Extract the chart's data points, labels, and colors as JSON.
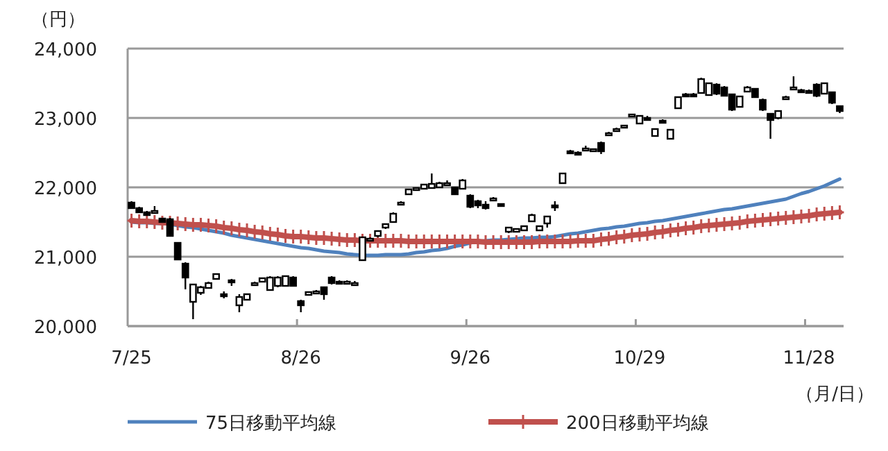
{
  "chart_data": {
    "type": "candlestick",
    "ylabel": "（円）",
    "xlabel": "（月/日）",
    "categories": [
      "7/25",
      null,
      null,
      null,
      null,
      null,
      null,
      null,
      null,
      null,
      null,
      null,
      null,
      null,
      null,
      null,
      null,
      null,
      null,
      null,
      null,
      null,
      "8/26",
      null,
      null,
      null,
      null,
      null,
      null,
      null,
      null,
      null,
      null,
      null,
      null,
      null,
      null,
      null,
      null,
      null,
      null,
      null,
      null,
      null,
      "9/26",
      null,
      null,
      null,
      null,
      null,
      null,
      null,
      null,
      null,
      null,
      null,
      null,
      null,
      null,
      null,
      null,
      null,
      null,
      null,
      null,
      null,
      "10/29",
      null,
      null,
      null,
      null,
      null,
      null,
      null,
      null,
      null,
      null,
      null,
      null,
      null,
      null,
      null,
      null,
      null,
      null,
      null,
      null,
      null,
      "11/28",
      null,
      null,
      null,
      null
    ],
    "ohlc": [
      [
        21780,
        21800,
        21700,
        21700
      ],
      [
        21700,
        21720,
        21640,
        21640
      ],
      [
        21640,
        21660,
        21600,
        21600
      ],
      [
        21650,
        21730,
        21650,
        21660
      ],
      [
        21550,
        21560,
        21500,
        21500
      ],
      [
        21540,
        21560,
        21300,
        21300
      ],
      [
        21200,
        21210,
        20960,
        20960
      ],
      [
        20900,
        20920,
        20530,
        20700
      ],
      [
        20350,
        20600,
        20100,
        20600
      ],
      [
        20480,
        20580,
        20450,
        20560
      ],
      [
        20550,
        20640,
        20540,
        20620
      ],
      [
        20680,
        20760,
        20680,
        20750
      ],
      [
        20460,
        20500,
        20400,
        20460
      ],
      [
        20660,
        20680,
        20580,
        20660
      ],
      [
        20300,
        20460,
        20200,
        20420
      ],
      [
        20380,
        20460,
        20380,
        20460
      ],
      [
        20600,
        20640,
        20580,
        20620
      ],
      [
        20640,
        20700,
        20640,
        20690
      ],
      [
        20520,
        20720,
        20520,
        20700
      ],
      [
        20580,
        20720,
        20560,
        20700
      ],
      [
        20580,
        20720,
        20580,
        20720
      ],
      [
        20700,
        20720,
        20580,
        20580
      ],
      [
        20360,
        20380,
        20200,
        20300
      ],
      [
        20450,
        20500,
        20450,
        20490
      ],
      [
        20480,
        20520,
        20480,
        20500
      ],
      [
        20560,
        20560,
        20380,
        20460
      ],
      [
        20700,
        20720,
        20600,
        20620
      ],
      [
        20640,
        20660,
        20600,
        20620
      ],
      [
        20620,
        20660,
        20600,
        20640
      ],
      [
        20600,
        20650,
        20580,
        20620
      ],
      [
        20950,
        21280,
        20950,
        21280
      ],
      [
        21250,
        21280,
        21230,
        21260
      ],
      [
        21300,
        21380,
        21280,
        21370
      ],
      [
        21420,
        21480,
        21400,
        21470
      ],
      [
        21500,
        21640,
        21500,
        21620
      ],
      [
        21770,
        21800,
        21760,
        21780
      ],
      [
        21900,
        21980,
        21890,
        21970
      ],
      [
        21960,
        22000,
        21950,
        21990
      ],
      [
        21980,
        22050,
        21970,
        22040
      ],
      [
        21990,
        22200,
        21980,
        22050
      ],
      [
        22000,
        22080,
        21990,
        22060
      ],
      [
        22040,
        22100,
        22030,
        22060
      ],
      [
        22000,
        22010,
        21900,
        21900
      ],
      [
        21980,
        22120,
        21980,
        22100
      ],
      [
        21880,
        21900,
        21700,
        21720
      ],
      [
        21800,
        21820,
        21700,
        21740
      ],
      [
        21750,
        21800,
        21680,
        21700
      ],
      [
        21820,
        21860,
        21800,
        21840
      ],
      [
        21760,
        21770,
        21740,
        21750
      ],
      [
        21360,
        21420,
        21340,
        21420
      ],
      [
        21360,
        21410,
        21350,
        21400
      ],
      [
        21380,
        21450,
        21380,
        21440
      ],
      [
        21510,
        21620,
        21500,
        21600
      ],
      [
        21380,
        21450,
        21370,
        21440
      ],
      [
        21480,
        21590,
        21420,
        21580
      ],
      [
        21740,
        21800,
        21660,
        21720
      ],
      [
        22060,
        22200,
        22060,
        22200
      ],
      [
        22520,
        22540,
        22480,
        22500
      ],
      [
        22500,
        22520,
        22460,
        22480
      ],
      [
        22540,
        22600,
        22520,
        22560
      ],
      [
        22540,
        22560,
        22520,
        22550
      ],
      [
        22640,
        22660,
        22480,
        22520
      ],
      [
        22760,
        22800,
        22740,
        22780
      ],
      [
        22820,
        22860,
        22800,
        22840
      ],
      [
        22880,
        22900,
        22860,
        22890
      ],
      [
        23040,
        23060,
        23020,
        23050
      ],
      [
        22920,
        23040,
        22920,
        23030
      ],
      [
        23000,
        23030,
        22980,
        22990
      ],
      [
        22740,
        22840,
        22740,
        22840
      ],
      [
        22960,
        22980,
        22920,
        22950
      ],
      [
        22700,
        22830,
        22700,
        22830
      ],
      [
        23140,
        23300,
        23140,
        23300
      ],
      [
        23340,
        23360,
        23320,
        23330
      ],
      [
        23340,
        23360,
        23320,
        23330
      ],
      [
        23360,
        23580,
        23360,
        23560
      ],
      [
        23330,
        23500,
        23330,
        23500
      ],
      [
        23480,
        23500,
        23330,
        23350
      ],
      [
        23440,
        23460,
        23320,
        23320
      ],
      [
        23340,
        23350,
        23100,
        23120
      ],
      [
        23160,
        23310,
        23160,
        23310
      ],
      [
        23380,
        23460,
        23380,
        23440
      ],
      [
        23420,
        23430,
        23290,
        23300
      ],
      [
        23260,
        23280,
        23100,
        23120
      ],
      [
        23060,
        23070,
        22700,
        22970
      ],
      [
        23000,
        23100,
        22980,
        23100
      ],
      [
        23280,
        23320,
        23280,
        23300
      ],
      [
        23430,
        23600,
        23420,
        23440
      ],
      [
        23400,
        23420,
        23390,
        23400
      ],
      [
        23390,
        23410,
        23370,
        23380
      ],
      [
        23480,
        23500,
        23300,
        23320
      ],
      [
        23350,
        23500,
        23350,
        23500
      ],
      [
        23370,
        23380,
        23200,
        23220
      ],
      [
        23170,
        23180,
        23070,
        23100
      ]
    ],
    "series": [
      {
        "name": "75日移動平均線",
        "type": "line",
        "color": "#4f81bd",
        "marker": "none",
        "values": [
          21500,
          21490,
          21490,
          21480,
          21480,
          21470,
          21450,
          21430,
          21420,
          21400,
          21380,
          21360,
          21340,
          21310,
          21290,
          21270,
          21250,
          21230,
          21210,
          21190,
          21170,
          21150,
          21130,
          21120,
          21100,
          21080,
          21070,
          21060,
          21040,
          21030,
          21020,
          21020,
          21020,
          21030,
          21030,
          21030,
          21040,
          21060,
          21070,
          21090,
          21100,
          21120,
          21150,
          21170,
          21200,
          21220,
          21230,
          21240,
          21240,
          21250,
          21260,
          21270,
          21270,
          21280,
          21280,
          21290,
          21310,
          21330,
          21340,
          21360,
          21380,
          21400,
          21410,
          21430,
          21440,
          21460,
          21480,
          21490,
          21510,
          21520,
          21540,
          21560,
          21580,
          21600,
          21620,
          21640,
          21660,
          21680,
          21690,
          21710,
          21730,
          21750,
          21770,
          21790,
          21810,
          21830,
          21870,
          21910,
          21940,
          21980,
          22020,
          22070,
          22120
        ]
      },
      {
        "name": "200日移動平均線",
        "type": "line",
        "color": "#c0504d",
        "marker": "cross",
        "values": [
          21520,
          21510,
          21510,
          21500,
          21490,
          21490,
          21480,
          21470,
          21460,
          21460,
          21450,
          21440,
          21420,
          21410,
          21390,
          21380,
          21360,
          21350,
          21330,
          21320,
          21300,
          21290,
          21290,
          21280,
          21270,
          21270,
          21260,
          21250,
          21240,
          21240,
          21230,
          21230,
          21230,
          21230,
          21230,
          21230,
          21220,
          21220,
          21220,
          21220,
          21220,
          21220,
          21220,
          21220,
          21220,
          21220,
          21210,
          21210,
          21210,
          21210,
          21210,
          21210,
          21210,
          21220,
          21220,
          21220,
          21220,
          21220,
          21230,
          21230,
          21230,
          21250,
          21260,
          21280,
          21290,
          21310,
          21320,
          21330,
          21350,
          21360,
          21380,
          21390,
          21410,
          21420,
          21440,
          21450,
          21460,
          21470,
          21480,
          21490,
          21510,
          21520,
          21530,
          21540,
          21550,
          21560,
          21570,
          21580,
          21590,
          21610,
          21620,
          21630,
          21640
        ]
      }
    ],
    "ylim": [
      20000,
      24000
    ],
    "yticks": [
      {
        "value": 20000,
        "label": "20,000"
      },
      {
        "value": 21000,
        "label": "21,000"
      },
      {
        "value": 22000,
        "label": "22,000"
      },
      {
        "value": 23000,
        "label": "23,000"
      },
      {
        "value": 24000,
        "label": "24,000"
      }
    ],
    "grid": "y",
    "legend": "bottom"
  }
}
